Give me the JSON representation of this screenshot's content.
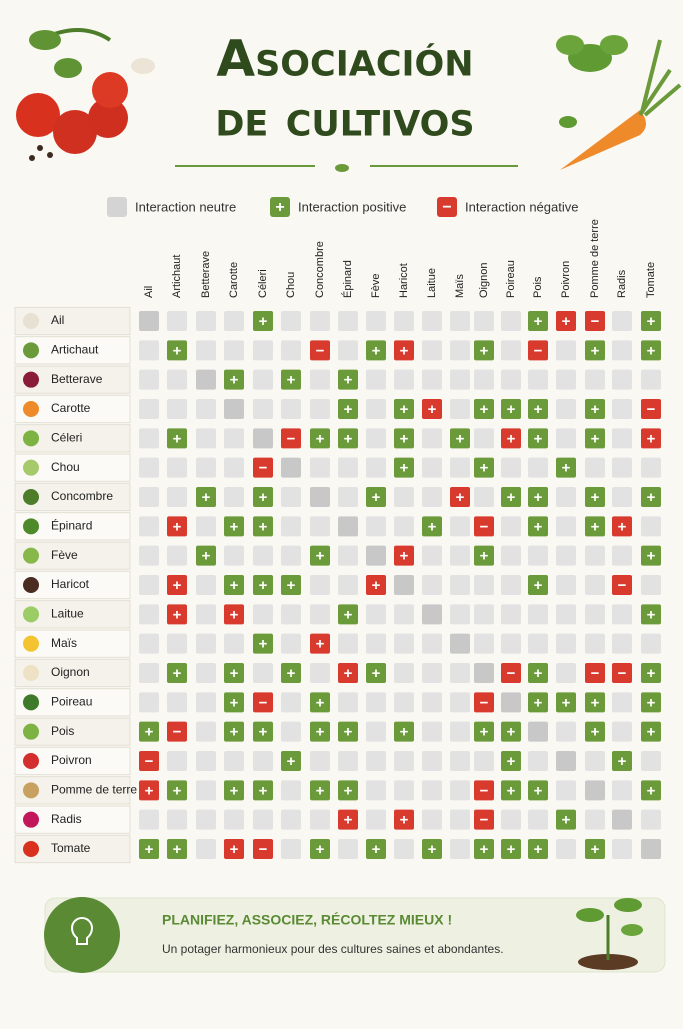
{
  "header": {
    "title_lines": [
      "Asociación",
      "de cultivos"
    ]
  },
  "legend": [
    {
      "label": "Interaction neutre",
      "color": "#d4d4d4"
    },
    {
      "label": "Interaction positive",
      "symbol": "+",
      "color": "#6a9a3a"
    },
    {
      "label": "Interaction négative",
      "symbol": "−",
      "color": "#d93a2e"
    }
  ],
  "table": {
    "columns": [
      "Ail",
      "Artichaut",
      "Betterave",
      "Carotte",
      "Céleri",
      "Chou",
      "Concombre",
      "Épinard",
      "Fève",
      "Haricot",
      "Laitue",
      "Maïs",
      "Oignon",
      "Poireau",
      "Pois",
      "Poivron",
      "Pomme de terre",
      "Radis",
      "Tomate"
    ],
    "rows": [
      {
        "label": "Ail",
        "cells": [
          null,
          null,
          null,
          null,
          "+",
          null,
          null,
          null,
          null,
          null,
          null,
          null,
          null,
          null,
          "+",
          {
            "text": "+",
            "color": "#d93a2e"
          },
          "−",
          null,
          "+"
        ]
      },
      {
        "label": "Artichaut",
        "cells": [
          null,
          "+",
          null,
          null,
          null,
          null,
          "−",
          null,
          "+",
          {
            "text": "+",
            "color": "#d93a2e"
          },
          null,
          null,
          "+",
          null,
          "−",
          null,
          "+",
          null,
          "+"
        ]
      },
      {
        "label": "Betterave",
        "cells": [
          null,
          null,
          null,
          "+",
          null,
          "+",
          null,
          "+",
          null,
          null,
          null,
          null,
          null,
          null,
          null,
          null,
          null,
          null,
          null
        ]
      },
      {
        "label": "Carotte",
        "cells": [
          null,
          null,
          null,
          null,
          null,
          null,
          null,
          "+",
          null,
          "+",
          {
            "text": "+",
            "color": "#d93a2e"
          },
          null,
          "+",
          "+",
          "+",
          null,
          "+",
          null,
          "−"
        ]
      },
      {
        "label": "Céleri",
        "cells": [
          null,
          "+",
          null,
          null,
          null,
          "−",
          "+",
          "+",
          null,
          "+",
          null,
          "+",
          null,
          {
            "text": "+",
            "color": "#d93a2e"
          },
          "+",
          null,
          "+",
          null,
          {
            "text": "+",
            "color": "#d93a2e"
          }
        ]
      },
      {
        "label": "Chou",
        "cells": [
          null,
          null,
          null,
          null,
          "−",
          null,
          null,
          null,
          null,
          "+",
          null,
          null,
          "+",
          null,
          null,
          "+",
          null,
          null,
          null
        ]
      },
      {
        "label": "Concombre",
        "cells": [
          null,
          null,
          "+",
          null,
          "+",
          null,
          null,
          null,
          "+",
          null,
          null,
          {
            "text": "+",
            "color": "#d93a2e"
          },
          null,
          "+",
          "+",
          null,
          "+",
          null,
          "+"
        ]
      },
      {
        "label": "Épinard",
        "cells": [
          null,
          {
            "text": "+",
            "color": "#d93a2e"
          },
          null,
          "+",
          "+",
          null,
          null,
          null,
          null,
          null,
          "+",
          null,
          "−",
          null,
          "+",
          null,
          "+",
          {
            "text": "+",
            "color": "#d93a2e"
          },
          null
        ]
      },
      {
        "label": "Fève",
        "cells": [
          null,
          null,
          "+",
          null,
          null,
          null,
          "+",
          null,
          null,
          {
            "text": "+",
            "color": "#d93a2e"
          },
          null,
          null,
          "+",
          null,
          null,
          null,
          null,
          null,
          "+"
        ]
      },
      {
        "label": "Haricot",
        "cells": [
          null,
          {
            "text": "+",
            "color": "#d93a2e"
          },
          null,
          "+",
          "+",
          "+",
          null,
          null,
          {
            "text": "+",
            "color": "#d93a2e"
          },
          null,
          null,
          null,
          null,
          null,
          "+",
          null,
          null,
          "−",
          null
        ]
      },
      {
        "label": "Laitue",
        "cells": [
          null,
          {
            "text": "+",
            "color": "#d93a2e"
          },
          null,
          {
            "text": "+",
            "color": "#d93a2e"
          },
          null,
          null,
          null,
          "+",
          null,
          null,
          null,
          null,
          null,
          null,
          null,
          null,
          null,
          null,
          "+"
        ]
      },
      {
        "label": "Maïs",
        "cells": [
          null,
          null,
          null,
          null,
          "+",
          null,
          {
            "text": "+",
            "color": "#d93a2e"
          },
          null,
          null,
          null,
          null,
          null,
          null,
          null,
          null,
          null,
          null,
          null,
          null
        ]
      },
      {
        "label": "Oignon",
        "cells": [
          null,
          "+",
          null,
          "+",
          null,
          "+",
          null,
          {
            "text": "+",
            "color": "#d93a2e"
          },
          "+",
          null,
          null,
          null,
          null,
          "−",
          "+",
          null,
          "−",
          "−",
          "+"
        ]
      },
      {
        "label": "Poireau",
        "cells": [
          null,
          null,
          null,
          "+",
          "−",
          null,
          "+",
          null,
          null,
          null,
          null,
          null,
          "−",
          null,
          "+",
          "+",
          "+",
          null,
          "+"
        ]
      },
      {
        "label": "Pois",
        "cells": [
          "+",
          "−",
          null,
          "+",
          "+",
          null,
          "+",
          "+",
          null,
          "+",
          null,
          null,
          "+",
          "+",
          null,
          null,
          "+",
          null,
          "+"
        ]
      },
      {
        "label": "Poivron",
        "cells": [
          "−",
          null,
          null,
          null,
          null,
          "+",
          null,
          null,
          null,
          null,
          null,
          null,
          null,
          "+",
          null,
          null,
          null,
          "+",
          null
        ]
      },
      {
        "label": "Pomme de terre",
        "cells": [
          {
            "text": "+",
            "color": "#d93a2e"
          },
          "+",
          null,
          "+",
          "+",
          null,
          "+",
          "+",
          null,
          null,
          null,
          null,
          "−",
          "+",
          "+",
          null,
          null,
          null,
          "+"
        ]
      },
      {
        "label": "Radis",
        "cells": [
          null,
          null,
          null,
          null,
          null,
          null,
          null,
          {
            "text": "+",
            "color": "#d93a2e"
          },
          null,
          {
            "text": "+",
            "color": "#d93a2e"
          },
          null,
          null,
          "−",
          null,
          null,
          "+",
          null,
          null,
          null
        ]
      },
      {
        "label": "Tomate",
        "cells": [
          "+",
          "+",
          null,
          {
            "text": "+",
            "color": "#d93a2e"
          },
          "−",
          null,
          "+",
          null,
          "+",
          null,
          "+",
          null,
          "+",
          "+",
          "+",
          null,
          "+",
          null,
          null
        ]
      }
    ]
  },
  "footer": {
    "heading": "PLANIFIEZ, ASSOCIEZ, RÉCOLTEZ MIEUX !",
    "text": "Un potager harmonieux pour des cultures saines et abondantes."
  }
}
